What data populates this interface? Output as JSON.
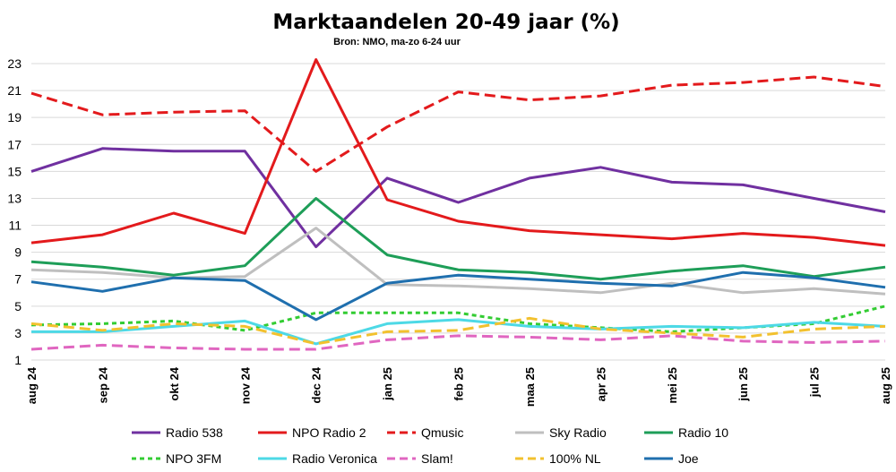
{
  "chart_data": {
    "type": "line",
    "title": "Marktaandelen 20-49 jaar (%)",
    "subtitle": "Bron: NMO, ma-zo 6-24 uur",
    "xlabel": "",
    "ylabel": "",
    "ylim": [
      1,
      23
    ],
    "yticks": [
      "1",
      "3",
      "5",
      "7",
      "9",
      "11",
      "13",
      "15",
      "17",
      "19",
      "21",
      "23"
    ],
    "grid": true,
    "legend_position": "bottom",
    "categories": [
      "aug 24",
      "sep 24",
      "okt 24",
      "nov 24",
      "dec 24",
      "jan 25",
      "feb 25",
      "maa 25",
      "apr 25",
      "mei 25",
      "jun 25",
      "jul 25",
      "aug 25"
    ],
    "series": [
      {
        "name": "Radio 538",
        "color": "#7030a0",
        "dash": "solid",
        "values": [
          15.0,
          16.7,
          16.5,
          16.5,
          9.4,
          14.5,
          12.7,
          14.5,
          15.3,
          14.2,
          14.0,
          13.0,
          12.0
        ]
      },
      {
        "name": "NPO Radio 2",
        "color": "#e31a1c",
        "dash": "solid",
        "values": [
          9.7,
          10.3,
          11.9,
          10.4,
          23.3,
          12.9,
          11.3,
          10.6,
          10.3,
          10.0,
          10.4,
          10.1,
          9.5
        ]
      },
      {
        "name": "Qmusic",
        "color": "#e31a1c",
        "dash": "dashed",
        "values": [
          20.8,
          19.2,
          19.4,
          19.5,
          15.0,
          18.3,
          20.9,
          20.3,
          20.6,
          21.4,
          21.6,
          22.0,
          21.3
        ]
      },
      {
        "name": "Sky Radio",
        "color": "#bfbfbf",
        "dash": "solid",
        "values": [
          7.7,
          7.5,
          7.1,
          7.2,
          10.8,
          6.6,
          6.5,
          6.3,
          6.0,
          6.7,
          6.0,
          6.3,
          5.9
        ]
      },
      {
        "name": "Radio 10",
        "color": "#1e9e58",
        "dash": "solid",
        "values": [
          8.3,
          7.9,
          7.3,
          8.0,
          13.0,
          8.8,
          7.7,
          7.5,
          7.0,
          7.6,
          8.0,
          7.2,
          7.9
        ]
      },
      {
        "name": "NPO 3FM",
        "color": "#33cc33",
        "dash": "dotted",
        "values": [
          3.6,
          3.7,
          3.9,
          3.2,
          4.5,
          4.5,
          4.5,
          3.7,
          3.4,
          3.1,
          3.4,
          3.7,
          5.0
        ]
      },
      {
        "name": "Radio Veronica",
        "color": "#4dd9e6",
        "dash": "solid",
        "values": [
          3.1,
          3.1,
          3.5,
          3.9,
          2.2,
          3.7,
          4.0,
          3.5,
          3.3,
          3.5,
          3.4,
          3.8,
          3.5
        ]
      },
      {
        "name": "Slam!",
        "color": "#e066c0",
        "dash": "dashed",
        "values": [
          1.8,
          2.1,
          1.9,
          1.8,
          1.8,
          2.5,
          2.8,
          2.7,
          2.5,
          2.8,
          2.4,
          2.3,
          2.4
        ]
      },
      {
        "name": "100% NL",
        "color": "#f2c12e",
        "dash": "dashed",
        "values": [
          3.7,
          3.2,
          3.7,
          3.5,
          2.2,
          3.1,
          3.2,
          4.1,
          3.3,
          3.0,
          2.7,
          3.3,
          3.5
        ]
      },
      {
        "name": "Joe",
        "color": "#1f6fae",
        "dash": "solid",
        "values": [
          6.8,
          6.1,
          7.1,
          6.9,
          4.0,
          6.7,
          7.3,
          7.0,
          6.7,
          6.5,
          7.5,
          7.1,
          6.4
        ]
      }
    ]
  }
}
